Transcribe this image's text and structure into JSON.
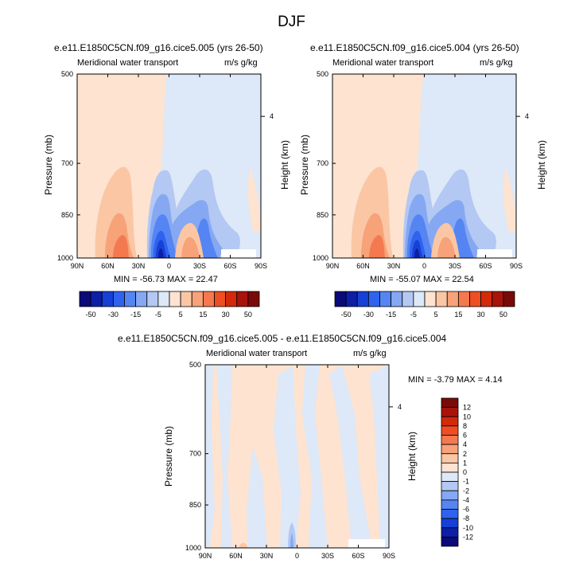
{
  "title": "DJF",
  "panels": [
    {
      "id": "p1",
      "case": "e.e11.E1850C5CN.f09_g16.cice5.005 (yrs 26-50)",
      "variable": "Meridional water transport",
      "units": "m/s g/kg",
      "min_max": "MIN = -56.73  MAX =  22.47",
      "ylabel_left": "Pressure (mb)",
      "ylabel_right": "Height (km)"
    },
    {
      "id": "p2",
      "case": "e.e11.E1850C5CN.f09_g16.cice5.004 (yrs 26-50)",
      "variable": "Meridional water transport",
      "units": "m/s g/kg",
      "min_max": "MIN = -55.07  MAX =  22.54",
      "ylabel_left": "Pressure (mb)",
      "ylabel_right": "Height (km)"
    },
    {
      "id": "p3",
      "case": "e.e11.E1850C5CN.f09_g16.cice5.005 - e.e11.E1850C5CN.f09_g16.cice5.004",
      "variable": "Meridional water transport",
      "units": "m/s g/kg",
      "min_max": "MIN =  -3.79  MAX =   4.14",
      "ylabel_left": "Pressure (mb)",
      "ylabel_right": "Height (km)"
    }
  ],
  "chart_data": [
    {
      "type": "heatmap",
      "title": "e.e11.E1850C5CN.f09_g16.cice5.005 (yrs 26-50)",
      "xlabel": "",
      "ylabel": "Pressure (mb)",
      "x_ticks": [
        "90N",
        "60N",
        "30N",
        "0",
        "30S",
        "60S",
        "90S"
      ],
      "y_ticks": [
        "500",
        "700",
        "850",
        "1000"
      ],
      "right_ticks": [
        "4"
      ],
      "right_label": "Height (km)",
      "min": -56.73,
      "max": 22.47
    },
    {
      "type": "heatmap",
      "title": "e.e11.E1850C5CN.f09_g16.cice5.004 (yrs 26-50)",
      "xlabel": "",
      "ylabel": "Pressure (mb)",
      "x_ticks": [
        "90N",
        "60N",
        "30N",
        "0",
        "30S",
        "60S",
        "90S"
      ],
      "y_ticks": [
        "500",
        "700",
        "850",
        "1000"
      ],
      "right_ticks": [
        "4"
      ],
      "right_label": "Height (km)",
      "min": -55.07,
      "max": 22.54
    },
    {
      "type": "heatmap",
      "title": "e.e11.E1850C5CN.f09_g16.cice5.005 - e.e11.E1850C5CN.f09_g16.cice5.004",
      "xlabel": "",
      "ylabel": "Pressure (mb)",
      "x_ticks": [
        "90N",
        "60N",
        "30N",
        "0",
        "30S",
        "60S",
        "90S"
      ],
      "y_ticks": [
        "500",
        "700",
        "850",
        "1000"
      ],
      "right_ticks": [
        "4"
      ],
      "right_label": "Height (km)",
      "min": -3.79,
      "max": 4.14
    }
  ],
  "colorbar_main": {
    "colors": [
      "#0a0a78",
      "#0c1fa6",
      "#1640d6",
      "#2f63ee",
      "#5585f2",
      "#86a8f2",
      "#b3c8f2",
      "#dde8f8",
      "#fde3d0",
      "#fbc6a4",
      "#f7a279",
      "#f4794f",
      "#ee4e22",
      "#d32a0c",
      "#a8140a",
      "#7a0a08"
    ],
    "labels": [
      "-50",
      "-30",
      "-15",
      "-5",
      "5",
      "15",
      "30",
      "50"
    ]
  },
  "colorbar_diff": {
    "colors": [
      "#0a0a78",
      "#0c1fa6",
      "#1640d6",
      "#2f63ee",
      "#5585f2",
      "#86a8f2",
      "#b3c8f2",
      "#dde8f8",
      "#fde3d0",
      "#fbc6a4",
      "#f7a279",
      "#f4794f",
      "#ee4e22",
      "#d32a0c",
      "#a8140a",
      "#7a0a08"
    ],
    "labels": [
      "12",
      "10",
      "8",
      "6",
      "4",
      "2",
      "1",
      "0",
      "-1",
      "-2",
      "-4",
      "-6",
      "-8",
      "-10",
      "-12"
    ]
  }
}
